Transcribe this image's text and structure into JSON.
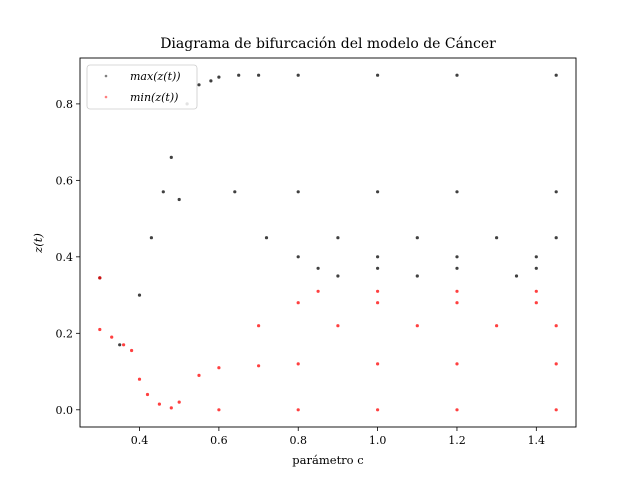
{
  "chart_data": {
    "type": "scatter",
    "title": "Diagrama de bifurcación del modelo de Cáncer",
    "xlabel": "parámetro c",
    "ylabel": "z(t)",
    "xlim": [
      0.25,
      1.5
    ],
    "ylim": [
      -0.045,
      0.92
    ],
    "xticks": [
      "0.4",
      "0.6",
      "0.8",
      "1.0",
      "1.2",
      "1.4"
    ],
    "yticks": [
      "0.0",
      "0.2",
      "0.4",
      "0.6",
      "0.8"
    ],
    "grid": false,
    "legend_position": "top-left",
    "series": [
      {
        "name": "max(z(t))",
        "color": "#000000",
        "points": [
          [
            0.3,
            0.345
          ],
          [
            0.35,
            0.17
          ],
          [
            0.4,
            0.3
          ],
          [
            0.43,
            0.45
          ],
          [
            0.46,
            0.57
          ],
          [
            0.48,
            0.66
          ],
          [
            0.5,
            0.55
          ],
          [
            0.52,
            0.8
          ],
          [
            0.55,
            0.85
          ],
          [
            0.58,
            0.86
          ],
          [
            0.6,
            0.87
          ],
          [
            0.65,
            0.875
          ],
          [
            0.7,
            0.875
          ],
          [
            0.8,
            0.875
          ],
          [
            1.0,
            0.875
          ],
          [
            1.2,
            0.875
          ],
          [
            1.45,
            0.875
          ],
          [
            0.64,
            0.57
          ],
          [
            0.8,
            0.57
          ],
          [
            1.0,
            0.57
          ],
          [
            1.2,
            0.57
          ],
          [
            1.45,
            0.57
          ],
          [
            0.72,
            0.45
          ],
          [
            0.9,
            0.45
          ],
          [
            1.1,
            0.45
          ],
          [
            1.3,
            0.45
          ],
          [
            1.45,
            0.45
          ],
          [
            0.8,
            0.4
          ],
          [
            1.0,
            0.4
          ],
          [
            1.2,
            0.4
          ],
          [
            1.4,
            0.4
          ],
          [
            0.85,
            0.37
          ],
          [
            1.0,
            0.37
          ],
          [
            1.2,
            0.37
          ],
          [
            1.4,
            0.37
          ],
          [
            0.9,
            0.35
          ],
          [
            1.1,
            0.35
          ],
          [
            1.35,
            0.35
          ]
        ]
      },
      {
        "name": "min(z(t))",
        "color": "#ff0000",
        "points": [
          [
            0.3,
            0.345
          ],
          [
            0.3,
            0.21
          ],
          [
            0.33,
            0.19
          ],
          [
            0.36,
            0.17
          ],
          [
            0.38,
            0.155
          ],
          [
            0.4,
            0.08
          ],
          [
            0.42,
            0.04
          ],
          [
            0.45,
            0.015
          ],
          [
            0.48,
            0.005
          ],
          [
            0.5,
            0.02
          ],
          [
            0.55,
            0.09
          ],
          [
            0.6,
            0.11
          ],
          [
            0.7,
            0.115
          ],
          [
            0.8,
            0.12
          ],
          [
            1.0,
            0.12
          ],
          [
            1.2,
            0.12
          ],
          [
            1.45,
            0.12
          ],
          [
            0.6,
            0.0
          ],
          [
            0.8,
            0.0
          ],
          [
            1.0,
            0.0
          ],
          [
            1.2,
            0.0
          ],
          [
            1.45,
            0.0
          ],
          [
            0.7,
            0.22
          ],
          [
            0.9,
            0.22
          ],
          [
            1.1,
            0.22
          ],
          [
            1.3,
            0.22
          ],
          [
            1.45,
            0.22
          ],
          [
            0.8,
            0.28
          ],
          [
            1.0,
            0.28
          ],
          [
            1.2,
            0.28
          ],
          [
            1.4,
            0.28
          ],
          [
            0.85,
            0.31
          ],
          [
            1.0,
            0.31
          ],
          [
            1.2,
            0.31
          ],
          [
            1.4,
            0.31
          ]
        ]
      }
    ]
  }
}
